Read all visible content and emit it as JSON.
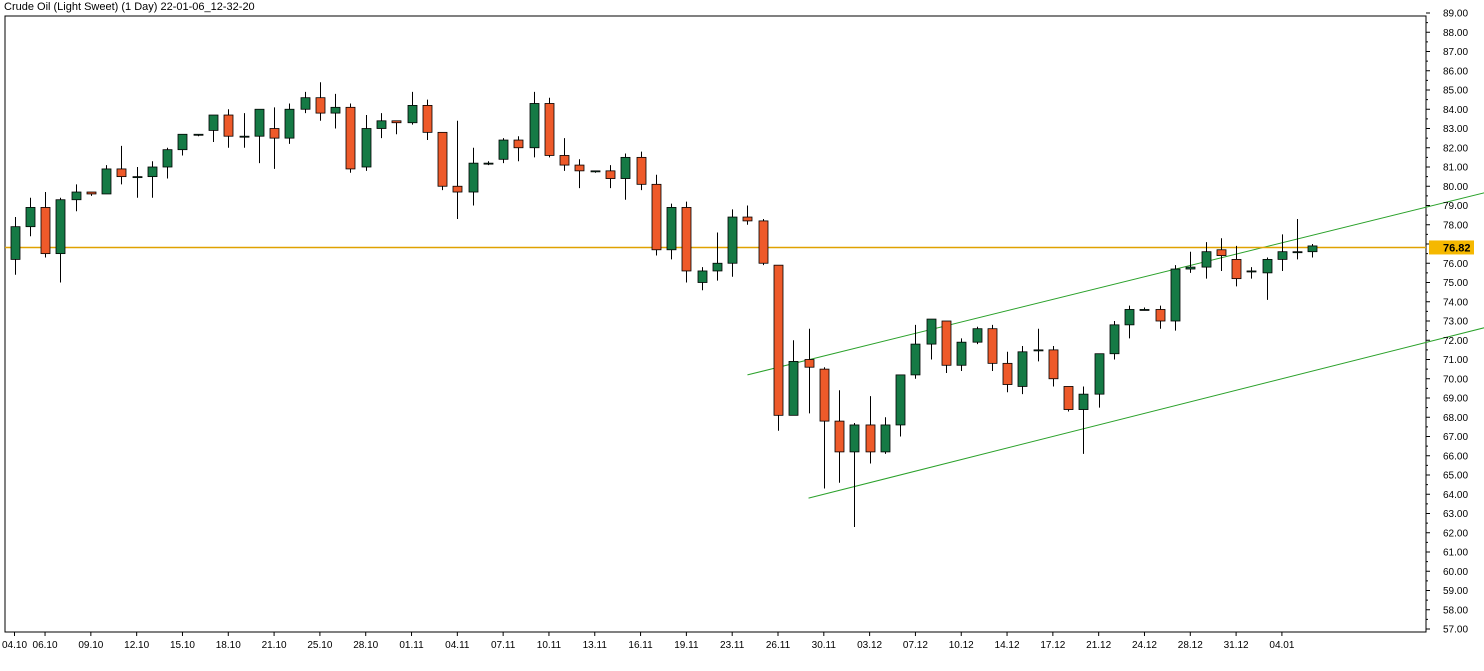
{
  "title": "Crude Oil (Light Sweet) (1 Day) 22-01-06_12-32-20",
  "colors": {
    "up": "#157a45",
    "down": "#ee5a2a",
    "trend": "#2aa12a",
    "price_line": "#e0a100",
    "price_label_bg": "#f5b800",
    "frame": "#000000"
  },
  "chart_data": {
    "type": "candlestick",
    "title": "Crude Oil (Light Sweet) (1 Day) 22-01-06_12-32-20",
    "ylim": [
      57,
      89
    ],
    "y_ticks": [
      "57.00",
      "58.00",
      "59.00",
      "60.00",
      "61.00",
      "62.00",
      "63.00",
      "64.00",
      "65.00",
      "66.00",
      "67.00",
      "68.00",
      "69.00",
      "70.00",
      "71.00",
      "72.00",
      "73.00",
      "74.00",
      "75.00",
      "76.00",
      "77.00",
      "78.00",
      "79.00",
      "80.00",
      "81.00",
      "82.00",
      "83.00",
      "84.00",
      "85.00",
      "86.00",
      "87.00",
      "88.00",
      "89.00"
    ],
    "x_tick_labels": [
      {
        "index": 0,
        "label": "04.10"
      },
      {
        "index": 2,
        "label": "06.10"
      },
      {
        "index": 5,
        "label": "09.10"
      },
      {
        "index": 8,
        "label": "12.10"
      },
      {
        "index": 11,
        "label": "15.10"
      },
      {
        "index": 14,
        "label": "18.10"
      },
      {
        "index": 17,
        "label": "21.10"
      },
      {
        "index": 20,
        "label": "25.10"
      },
      {
        "index": 23,
        "label": "28.10"
      },
      {
        "index": 26,
        "label": "01.11"
      },
      {
        "index": 29,
        "label": "04.11"
      },
      {
        "index": 32,
        "label": "07.11"
      },
      {
        "index": 35,
        "label": "10.11"
      },
      {
        "index": 38,
        "label": "13.11"
      },
      {
        "index": 41,
        "label": "16.11"
      },
      {
        "index": 44,
        "label": "19.11"
      },
      {
        "index": 47,
        "label": "23.11"
      },
      {
        "index": 50,
        "label": "26.11"
      },
      {
        "index": 53,
        "label": "30.11"
      },
      {
        "index": 56,
        "label": "03.12"
      },
      {
        "index": 59,
        "label": "07.12"
      },
      {
        "index": 62,
        "label": "10.12"
      },
      {
        "index": 65,
        "label": "14.12"
      },
      {
        "index": 68,
        "label": "17.12"
      },
      {
        "index": 71,
        "label": "21.12"
      },
      {
        "index": 74,
        "label": "24.12"
      },
      {
        "index": 77,
        "label": "28.12"
      },
      {
        "index": 80,
        "label": "31.12"
      },
      {
        "index": 83,
        "label": "04.01"
      }
    ],
    "candles": [
      {
        "o": 76.2,
        "h": 78.4,
        "l": 75.4,
        "c": 77.9
      },
      {
        "o": 77.9,
        "h": 79.4,
        "l": 77.4,
        "c": 78.9
      },
      {
        "o": 78.9,
        "h": 79.7,
        "l": 76.3,
        "c": 76.5
      },
      {
        "o": 76.5,
        "h": 79.4,
        "l": 75.0,
        "c": 79.3
      },
      {
        "o": 79.3,
        "h": 80.1,
        "l": 78.7,
        "c": 79.7
      },
      {
        "o": 79.7,
        "h": 79.7,
        "l": 79.5,
        "c": 79.6
      },
      {
        "o": 79.6,
        "h": 81.1,
        "l": 79.6,
        "c": 80.9
      },
      {
        "o": 80.9,
        "h": 82.1,
        "l": 80.1,
        "c": 80.5
      },
      {
        "o": 80.5,
        "h": 81.0,
        "l": 79.4,
        "c": 80.5
      },
      {
        "o": 80.5,
        "h": 81.3,
        "l": 79.4,
        "c": 81.0
      },
      {
        "o": 81.0,
        "h": 82.0,
        "l": 80.4,
        "c": 81.9
      },
      {
        "o": 81.9,
        "h": 82.7,
        "l": 81.6,
        "c": 82.7
      },
      {
        "o": 82.7,
        "h": 82.7,
        "l": 82.6,
        "c": 82.7
      },
      {
        "o": 82.9,
        "h": 83.7,
        "l": 82.3,
        "c": 83.7
      },
      {
        "o": 83.7,
        "h": 84.0,
        "l": 82.0,
        "c": 82.6
      },
      {
        "o": 82.6,
        "h": 83.8,
        "l": 82.0,
        "c": 82.6
      },
      {
        "o": 82.6,
        "h": 84.0,
        "l": 81.2,
        "c": 84.0
      },
      {
        "o": 83.0,
        "h": 84.1,
        "l": 80.9,
        "c": 82.5
      },
      {
        "o": 82.5,
        "h": 84.3,
        "l": 82.2,
        "c": 84.0
      },
      {
        "o": 84.0,
        "h": 84.9,
        "l": 83.8,
        "c": 84.6
      },
      {
        "o": 84.6,
        "h": 85.4,
        "l": 83.4,
        "c": 83.8
      },
      {
        "o": 83.8,
        "h": 84.8,
        "l": 83.0,
        "c": 84.1
      },
      {
        "o": 84.1,
        "h": 84.3,
        "l": 80.7,
        "c": 80.9
      },
      {
        "o": 81.0,
        "h": 83.7,
        "l": 80.8,
        "c": 83.0
      },
      {
        "o": 83.0,
        "h": 83.8,
        "l": 82.5,
        "c": 83.4
      },
      {
        "o": 83.4,
        "h": 83.4,
        "l": 82.7,
        "c": 83.3
      },
      {
        "o": 83.3,
        "h": 84.9,
        "l": 83.2,
        "c": 84.2
      },
      {
        "o": 84.2,
        "h": 84.5,
        "l": 82.4,
        "c": 82.8
      },
      {
        "o": 82.8,
        "h": 82.8,
        "l": 79.8,
        "c": 80.0
      },
      {
        "o": 80.0,
        "h": 83.4,
        "l": 78.3,
        "c": 79.7
      },
      {
        "o": 79.7,
        "h": 82.0,
        "l": 79.0,
        "c": 81.2
      },
      {
        "o": 81.2,
        "h": 81.3,
        "l": 81.1,
        "c": 81.2
      },
      {
        "o": 81.4,
        "h": 82.5,
        "l": 81.2,
        "c": 82.4
      },
      {
        "o": 82.4,
        "h": 82.6,
        "l": 81.3,
        "c": 82.0
      },
      {
        "o": 82.0,
        "h": 84.9,
        "l": 81.5,
        "c": 84.3
      },
      {
        "o": 84.3,
        "h": 84.6,
        "l": 81.5,
        "c": 81.6
      },
      {
        "o": 81.6,
        "h": 82.5,
        "l": 80.8,
        "c": 81.1
      },
      {
        "o": 81.1,
        "h": 81.4,
        "l": 79.9,
        "c": 80.8
      },
      {
        "o": 80.8,
        "h": 80.8,
        "l": 80.7,
        "c": 80.8
      },
      {
        "o": 80.8,
        "h": 81.1,
        "l": 79.9,
        "c": 80.4
      },
      {
        "o": 80.4,
        "h": 81.7,
        "l": 79.3,
        "c": 81.5
      },
      {
        "o": 81.5,
        "h": 81.8,
        "l": 79.8,
        "c": 80.1
      },
      {
        "o": 80.1,
        "h": 80.6,
        "l": 76.4,
        "c": 76.7
      },
      {
        "o": 76.7,
        "h": 79.1,
        "l": 76.2,
        "c": 78.9
      },
      {
        "o": 78.9,
        "h": 79.2,
        "l": 75.0,
        "c": 75.6
      },
      {
        "o": 75.0,
        "h": 75.8,
        "l": 74.6,
        "c": 75.6
      },
      {
        "o": 75.6,
        "h": 77.6,
        "l": 75.1,
        "c": 76.0
      },
      {
        "o": 76.0,
        "h": 78.8,
        "l": 75.3,
        "c": 78.4
      },
      {
        "o": 78.4,
        "h": 79.0,
        "l": 78.0,
        "c": 78.2
      },
      {
        "o": 78.2,
        "h": 78.3,
        "l": 75.9,
        "c": 76.0
      },
      {
        "o": 75.9,
        "h": 75.9,
        "l": 67.3,
        "c": 68.1
      },
      {
        "o": 68.1,
        "h": 72.0,
        "l": 68.1,
        "c": 70.9
      },
      {
        "o": 71.0,
        "h": 72.6,
        "l": 68.2,
        "c": 70.6
      },
      {
        "o": 70.5,
        "h": 70.6,
        "l": 64.3,
        "c": 67.8
      },
      {
        "o": 67.8,
        "h": 69.4,
        "l": 64.6,
        "c": 66.2
      },
      {
        "o": 66.2,
        "h": 67.7,
        "l": 62.3,
        "c": 67.6
      },
      {
        "o": 67.6,
        "h": 69.1,
        "l": 65.6,
        "c": 66.2
      },
      {
        "o": 66.2,
        "h": 68.0,
        "l": 66.1,
        "c": 67.6
      },
      {
        "o": 67.6,
        "h": 70.2,
        "l": 67.0,
        "c": 70.2
      },
      {
        "o": 70.2,
        "h": 72.8,
        "l": 70.0,
        "c": 71.8
      },
      {
        "o": 71.8,
        "h": 73.1,
        "l": 71.0,
        "c": 73.1
      },
      {
        "o": 73.0,
        "h": 73.0,
        "l": 70.3,
        "c": 70.7
      },
      {
        "o": 70.7,
        "h": 72.1,
        "l": 70.4,
        "c": 71.9
      },
      {
        "o": 71.9,
        "h": 72.7,
        "l": 71.8,
        "c": 72.6
      },
      {
        "o": 72.6,
        "h": 72.8,
        "l": 70.4,
        "c": 70.8
      },
      {
        "o": 70.8,
        "h": 71.4,
        "l": 69.3,
        "c": 69.7
      },
      {
        "o": 69.6,
        "h": 71.7,
        "l": 69.2,
        "c": 71.4
      },
      {
        "o": 71.5,
        "h": 72.6,
        "l": 70.9,
        "c": 71.5
      },
      {
        "o": 71.5,
        "h": 71.7,
        "l": 69.6,
        "c": 70.0
      },
      {
        "o": 69.6,
        "h": 69.6,
        "l": 68.3,
        "c": 68.4
      },
      {
        "o": 68.4,
        "h": 69.6,
        "l": 66.1,
        "c": 69.2
      },
      {
        "o": 69.2,
        "h": 71.3,
        "l": 68.5,
        "c": 71.3
      },
      {
        "o": 71.3,
        "h": 73.0,
        "l": 71.0,
        "c": 72.8
      },
      {
        "o": 72.8,
        "h": 73.8,
        "l": 72.1,
        "c": 73.6
      },
      {
        "o": 73.6,
        "h": 73.7,
        "l": 73.6,
        "c": 73.6
      },
      {
        "o": 73.6,
        "h": 73.8,
        "l": 72.6,
        "c": 73.0
      },
      {
        "o": 73.0,
        "h": 75.9,
        "l": 72.5,
        "c": 75.7
      },
      {
        "o": 75.7,
        "h": 76.6,
        "l": 75.5,
        "c": 75.8
      },
      {
        "o": 75.8,
        "h": 77.1,
        "l": 75.2,
        "c": 76.6
      },
      {
        "o": 76.7,
        "h": 77.3,
        "l": 75.6,
        "c": 76.4
      },
      {
        "o": 76.2,
        "h": 76.9,
        "l": 74.8,
        "c": 75.2
      },
      {
        "o": 75.6,
        "h": 75.8,
        "l": 75.2,
        "c": 75.6
      },
      {
        "o": 75.5,
        "h": 76.3,
        "l": 74.1,
        "c": 76.2
      },
      {
        "o": 76.2,
        "h": 77.5,
        "l": 75.6,
        "c": 76.6
      },
      {
        "o": 76.6,
        "h": 78.3,
        "l": 76.2,
        "c": 76.6
      },
      {
        "o": 76.6,
        "h": 77.0,
        "l": 76.3,
        "c": 76.9
      }
    ],
    "trend_lines": [
      {
        "i1": 48,
        "p1": 70.2,
        "i2": 99,
        "p2": 80.2
      },
      {
        "i1": 52,
        "p1": 63.8,
        "i2": 99,
        "p2": 73.2
      }
    ],
    "price_line": {
      "value": 76.82,
      "label": "76.82"
    },
    "grid": false
  }
}
